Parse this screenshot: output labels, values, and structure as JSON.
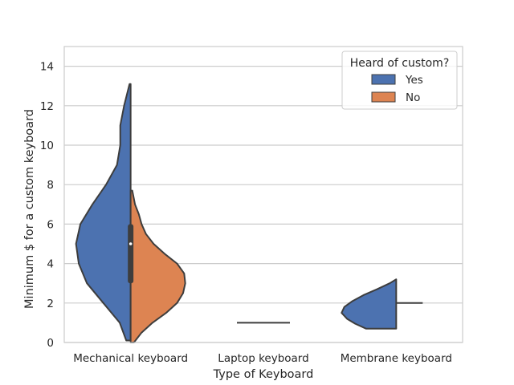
{
  "chart_data": {
    "type": "violin",
    "split": true,
    "xlabel": "Type of Keyboard",
    "ylabel": "Minimum $ for a custom keyboard",
    "ylim": [
      0,
      15
    ],
    "yticks": [
      0,
      2,
      4,
      6,
      8,
      10,
      12,
      14
    ],
    "categories": [
      "Mechanical keyboard",
      "Laptop keyboard",
      "Membrane keyboard"
    ],
    "grid": "horizontal",
    "legend": {
      "title": "Heard of custom?",
      "position": "top-right",
      "entries": [
        "Yes",
        "No"
      ]
    },
    "colors": {
      "Yes": "#4c72b0",
      "No": "#dd8452",
      "outline": "#3d3d3d"
    },
    "series": [
      {
        "name": "Yes",
        "violins": [
          {
            "category": "Mechanical keyboard",
            "range": [
              0.1,
              13.1
            ],
            "y": [
              0.1,
              1,
              2,
              3,
              4,
              5,
              6,
              7,
              8,
              9,
              10,
              11,
              12,
              13.1
            ],
            "density": [
              0.08,
              0.2,
              0.5,
              0.8,
              0.95,
              1.0,
              0.92,
              0.7,
              0.45,
              0.25,
              0.19,
              0.19,
              0.12,
              0.02
            ]
          },
          {
            "category": "Laptop keyboard",
            "flat_line": 1
          },
          {
            "category": "Membrane keyboard",
            "range": [
              0.7,
              3.2
            ],
            "y": [
              0.7,
              0.95,
              1.2,
              1.5,
              1.8,
              2.1,
              2.4,
              2.7,
              3.0,
              3.2
            ],
            "density": [
              0.55,
              0.75,
              0.9,
              1.0,
              0.95,
              0.8,
              0.6,
              0.35,
              0.12,
              0.0
            ]
          }
        ]
      },
      {
        "name": "No",
        "violins": [
          {
            "category": "Mechanical keyboard",
            "range": [
              0,
              7.7
            ],
            "y": [
              0,
              0.5,
              1,
              1.5,
              2,
              2.5,
              3,
              3.5,
              4,
              4.5,
              5,
              5.5,
              6,
              6.5,
              7,
              7.7
            ],
            "density": [
              0.06,
              0.2,
              0.4,
              0.65,
              0.85,
              0.96,
              1.0,
              0.98,
              0.85,
              0.62,
              0.42,
              0.28,
              0.2,
              0.15,
              0.08,
              0.03
            ]
          },
          {
            "category": "Laptop keyboard",
            "flat_line": 1
          },
          {
            "category": "Membrane keyboard",
            "flat_line": 2
          }
        ]
      }
    ],
    "box": {
      "category": "Mechanical keyboard",
      "q1": 3,
      "median": 5,
      "q3": 6
    }
  }
}
